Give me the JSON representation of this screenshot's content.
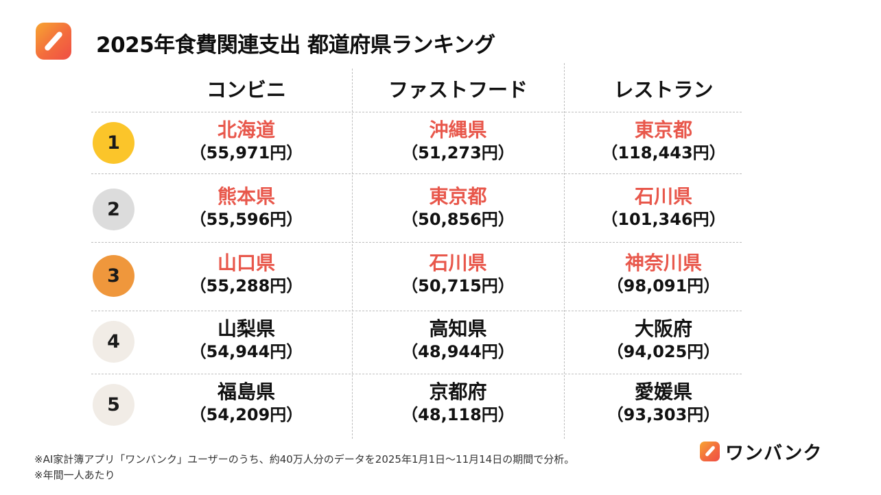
{
  "header": {
    "title": "2025年食費関連支出 都道府県ランキング",
    "icon": "pencil-app-icon"
  },
  "colors": {
    "highlight": "#e8574b",
    "text": "#111111",
    "rank1": "#fbc52a",
    "rank2": "#dcdcdc",
    "rank3": "#ef973c",
    "rank_other": "#f1ece6",
    "grid": "#bdbdbd"
  },
  "table": {
    "columns": [
      "コンビニ",
      "ファストフード",
      "レストラン"
    ],
    "rows": [
      {
        "rank": "1",
        "cells": [
          {
            "pref": "北海道",
            "amount": "（55,971円）",
            "highlight": true
          },
          {
            "pref": "沖縄県",
            "amount": "（51,273円）",
            "highlight": true
          },
          {
            "pref": "東京都",
            "amount": "（118,443円）",
            "highlight": true
          }
        ]
      },
      {
        "rank": "2",
        "cells": [
          {
            "pref": "熊本県",
            "amount": "（55,596円）",
            "highlight": true
          },
          {
            "pref": "東京都",
            "amount": "（50,856円）",
            "highlight": true
          },
          {
            "pref": "石川県",
            "amount": "（101,346円）",
            "highlight": true
          }
        ]
      },
      {
        "rank": "3",
        "cells": [
          {
            "pref": "山口県",
            "amount": "（55,288円）",
            "highlight": true
          },
          {
            "pref": "石川県",
            "amount": "（50,715円）",
            "highlight": true
          },
          {
            "pref": "神奈川県",
            "amount": "（98,091円）",
            "highlight": true
          }
        ]
      },
      {
        "rank": "4",
        "cells": [
          {
            "pref": "山梨県",
            "amount": "（54,944円）",
            "highlight": false
          },
          {
            "pref": "高知県",
            "amount": "（48,944円）",
            "highlight": false
          },
          {
            "pref": "大阪府",
            "amount": "（94,025円）",
            "highlight": false
          }
        ]
      },
      {
        "rank": "5",
        "cells": [
          {
            "pref": "福島県",
            "amount": "（54,209円）",
            "highlight": false
          },
          {
            "pref": "京都府",
            "amount": "（48,118円）",
            "highlight": false
          },
          {
            "pref": "愛媛県",
            "amount": "（93,303円）",
            "highlight": false
          }
        ]
      }
    ]
  },
  "footnotes": [
    "※AI家計簿アプリ「ワンバンク」ユーザーのうち、約40万人分のデータを2025年1月1日〜11月14日の期間で分析。",
    "※年間一人あたり"
  ],
  "brand": {
    "name": "ワンバンク",
    "icon": "pencil-app-icon"
  }
}
